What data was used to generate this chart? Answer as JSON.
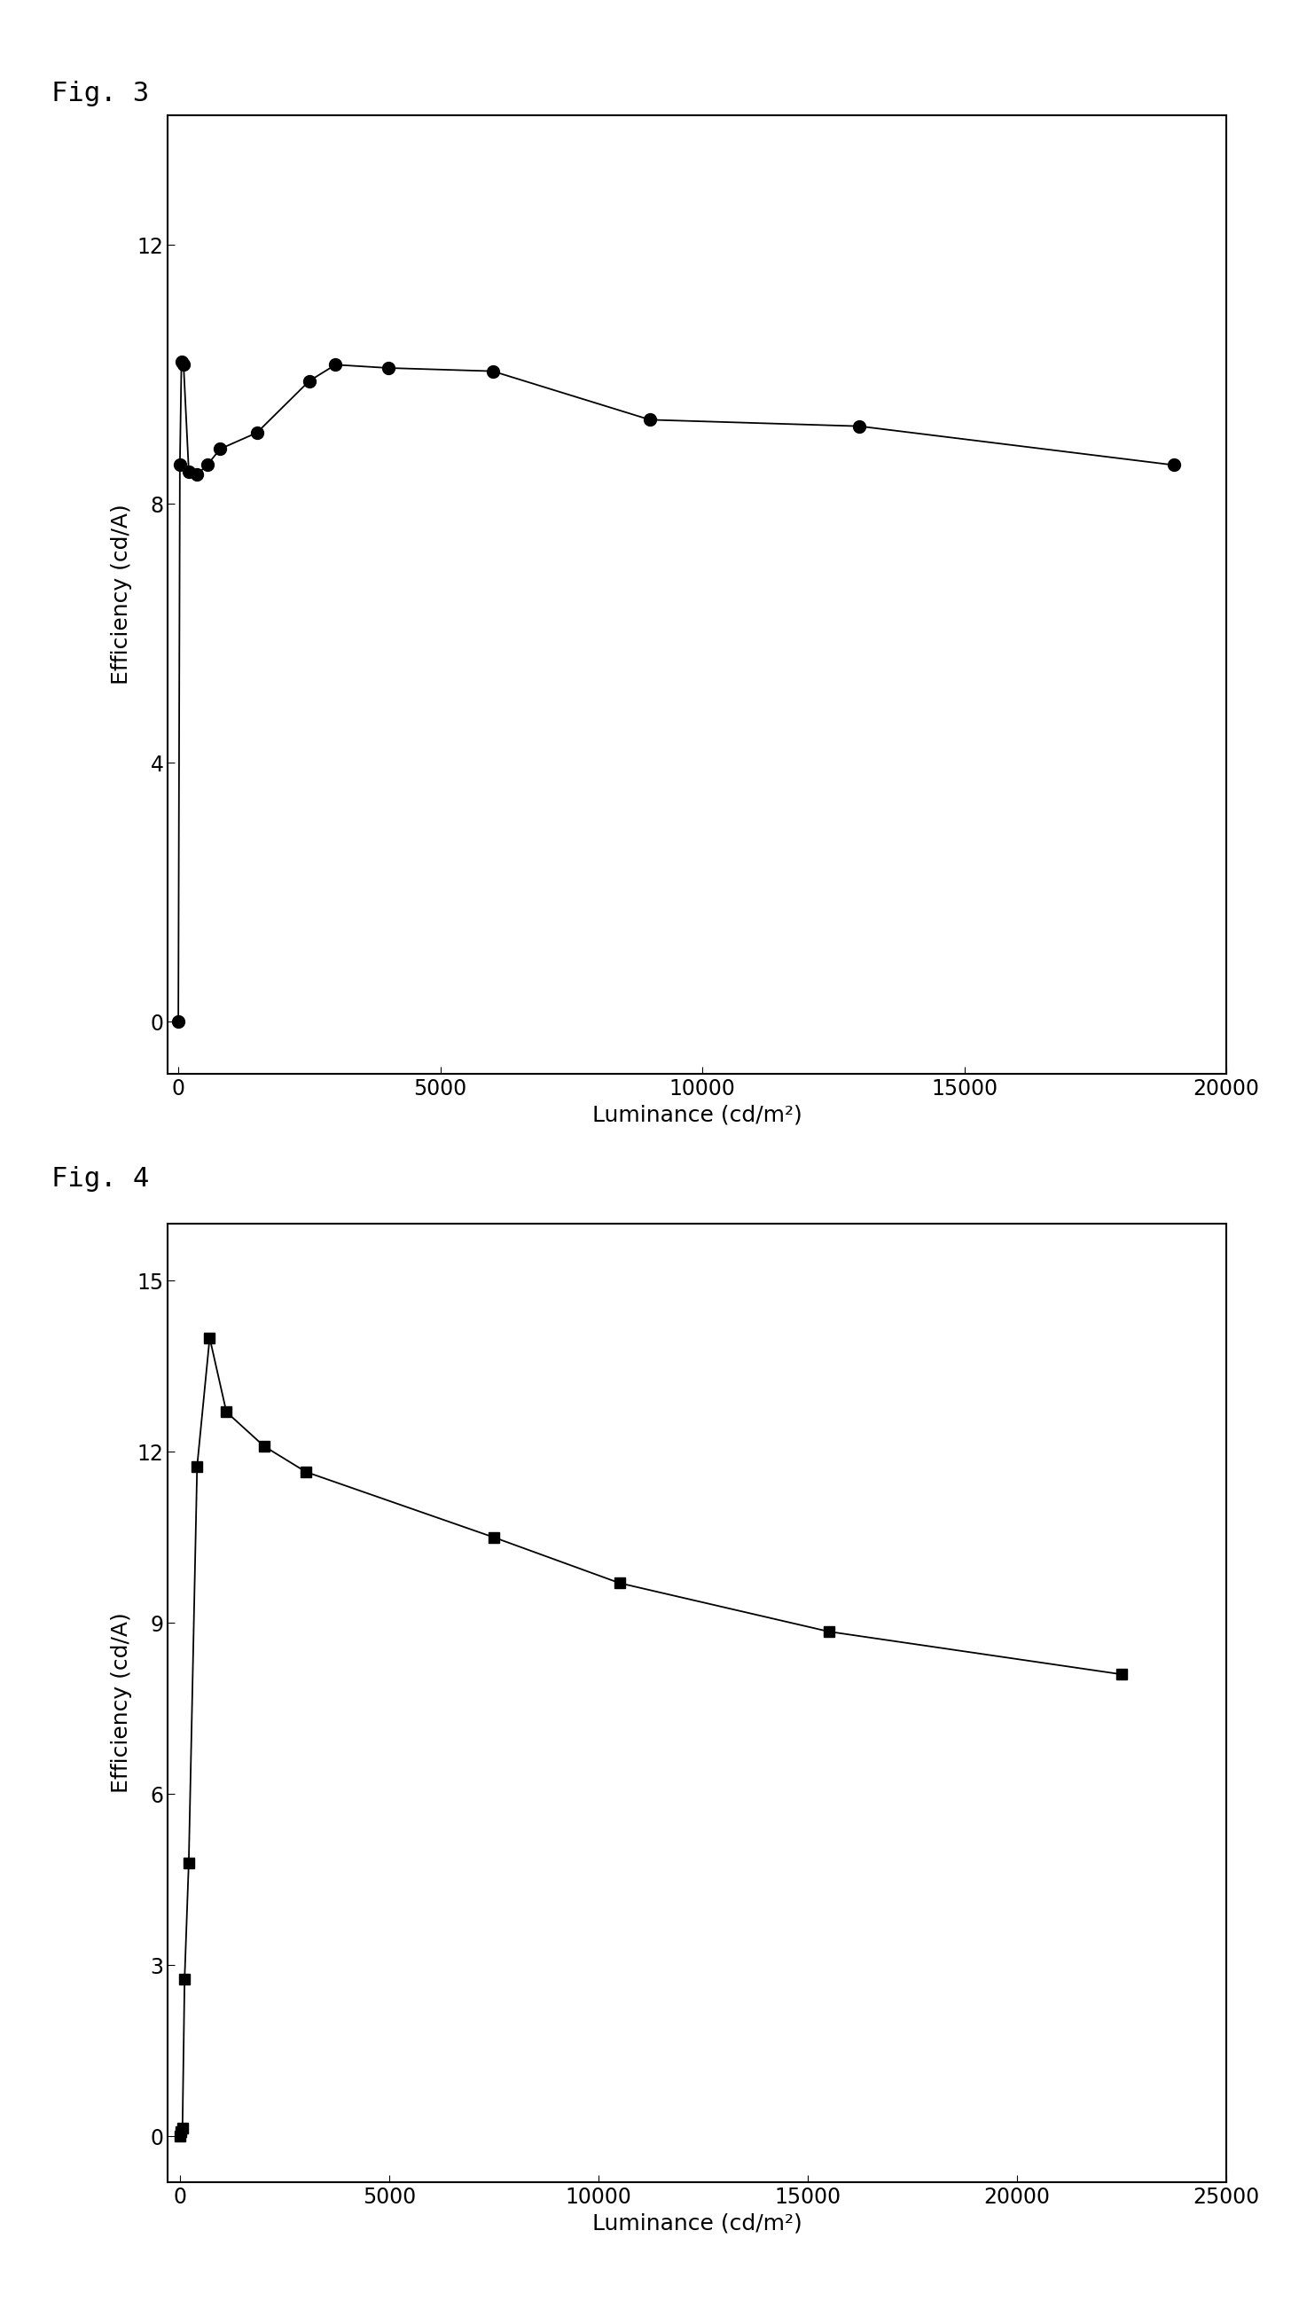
{
  "fig3": {
    "label": "Fig. 3",
    "x": [
      0,
      30,
      60,
      100,
      200,
      350,
      550,
      800,
      1500,
      2500,
      3000,
      4000,
      6000,
      9000,
      13000,
      19000
    ],
    "y": [
      0.0,
      8.6,
      10.2,
      10.15,
      8.5,
      8.45,
      8.6,
      8.85,
      9.1,
      9.9,
      10.15,
      10.1,
      10.05,
      9.3,
      9.2,
      8.6
    ],
    "xlabel": "Luminance (cd/m²)",
    "ylabel": "Efficiency (cd/A)",
    "xlim": [
      -200,
      20000
    ],
    "ylim": [
      -0.8,
      14
    ],
    "xticks": [
      0,
      5000,
      10000,
      15000,
      20000
    ],
    "yticks": [
      0,
      4,
      8,
      12
    ],
    "marker": "o",
    "markersize": 10,
    "color": "black"
  },
  "fig4": {
    "label": "Fig. 4",
    "x": [
      0,
      20,
      50,
      100,
      200,
      400,
      700,
      1100,
      2000,
      3000,
      7500,
      10500,
      15500,
      22500
    ],
    "y": [
      0.0,
      0.08,
      0.15,
      2.75,
      4.8,
      11.75,
      14.0,
      12.7,
      12.1,
      11.65,
      10.5,
      9.7,
      8.85,
      8.1
    ],
    "xlabel": "Luminance (cd/m²)",
    "ylabel": "Efficiency (cd/A)",
    "xlim": [
      -300,
      25000
    ],
    "ylim": [
      -0.8,
      16
    ],
    "xticks": [
      0,
      5000,
      10000,
      15000,
      20000,
      25000
    ],
    "yticks": [
      0,
      3,
      6,
      9,
      12,
      15
    ],
    "marker": "s",
    "markersize": 9,
    "color": "black"
  },
  "fig_label_fontsize": 22,
  "axis_label_fontsize": 18,
  "tick_fontsize": 17,
  "background_color": "#ffffff",
  "text_color": "#000000"
}
